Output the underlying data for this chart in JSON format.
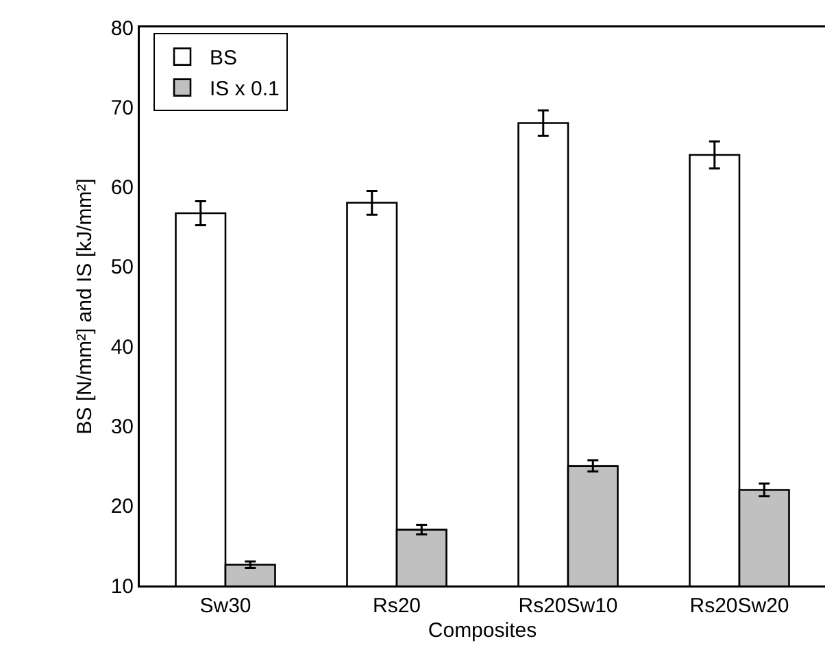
{
  "chart_data": {
    "type": "bar",
    "xlabel": "Composites",
    "ylabel": "BS [N/mm²] and IS [kJ/mm²]",
    "categories": [
      "Sw30",
      "Rs20",
      "Rs20Sw10",
      "Rs20Sw20"
    ],
    "series": [
      {
        "name": "BS",
        "color": "#ffffff",
        "values": [
          56.7,
          58,
          68,
          64
        ],
        "errors": [
          1.5,
          1.5,
          1.6,
          1.7
        ]
      },
      {
        "name": "IS x 0.1",
        "color": "#c0c0c0",
        "values": [
          12.6,
          17,
          25,
          22
        ],
        "errors": [
          0.4,
          0.6,
          0.7,
          0.8
        ]
      }
    ],
    "ylim": [
      10,
      80
    ],
    "yticks": [
      10,
      20,
      30,
      40,
      50,
      60,
      70,
      80
    ],
    "grid": false,
    "legend": "top left"
  }
}
